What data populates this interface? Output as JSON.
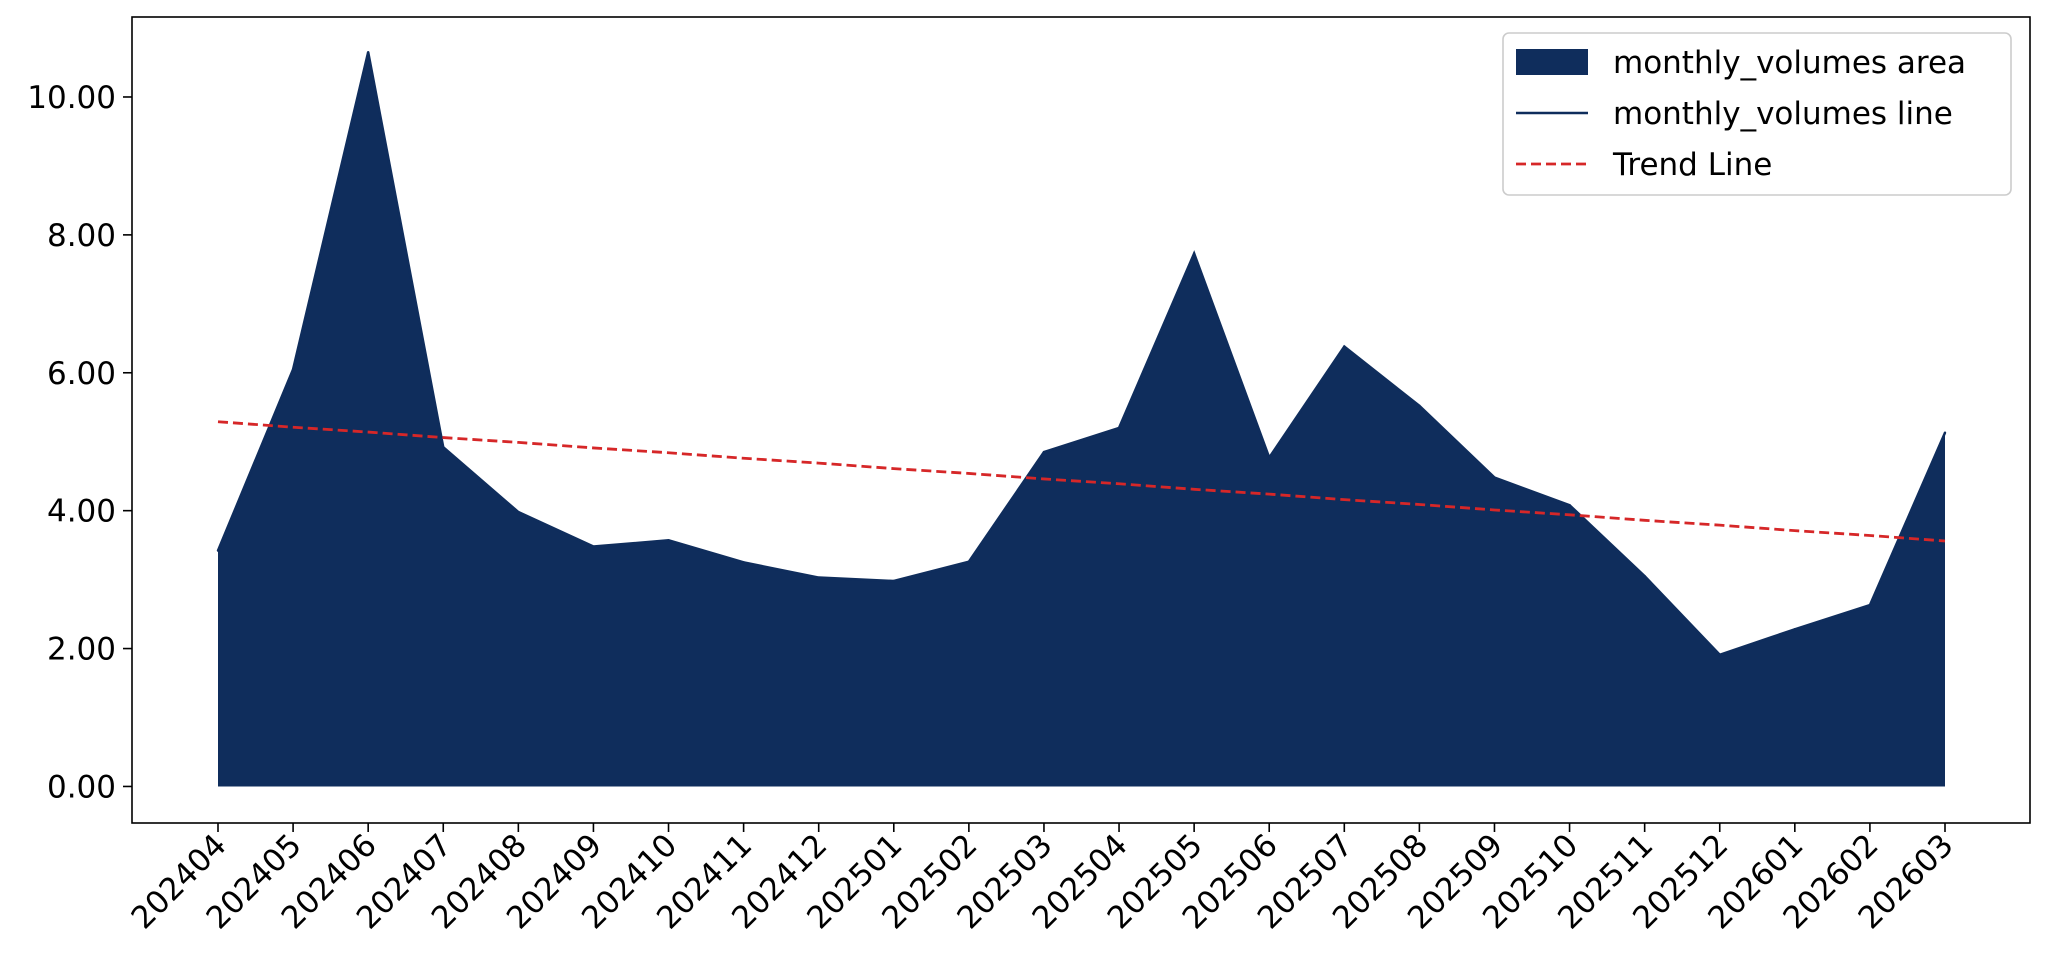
{
  "colors": {
    "area": "#0f2d5c",
    "line": "#0f2d5c",
    "trend": "#d62728",
    "axis": "#000000",
    "legend_border": "#cccccc"
  },
  "chart_data": {
    "type": "area",
    "categories": [
      "202404",
      "202405",
      "202406",
      "202407",
      "202408",
      "202409",
      "202410",
      "202411",
      "202412",
      "202501",
      "202502",
      "202503",
      "202504",
      "202505",
      "202506",
      "202507",
      "202508",
      "202509",
      "202510",
      "202511",
      "202512",
      "202601",
      "202602",
      "202603"
    ],
    "series": [
      {
        "name": "monthly_volumes area",
        "kind": "area",
        "values": [
          3.42,
          6.05,
          10.65,
          4.92,
          3.98,
          3.48,
          3.57,
          3.25,
          3.03,
          2.98,
          3.26,
          4.85,
          5.2,
          7.73,
          4.77,
          6.38,
          5.52,
          4.48,
          4.08,
          3.05,
          1.91,
          2.28,
          2.63,
          5.13
        ]
      },
      {
        "name": "monthly_volumes line",
        "kind": "line",
        "values": [
          3.42,
          6.05,
          10.65,
          4.92,
          3.98,
          3.48,
          3.57,
          3.25,
          3.03,
          2.98,
          3.26,
          4.85,
          5.2,
          7.73,
          4.77,
          6.38,
          5.52,
          4.48,
          4.08,
          3.05,
          1.91,
          2.28,
          2.63,
          5.13
        ]
      },
      {
        "name": "Trend Line",
        "kind": "trend",
        "values": [
          5.29,
          5.21,
          5.14,
          5.06,
          4.99,
          4.91,
          4.84,
          4.76,
          4.69,
          4.61,
          4.54,
          4.46,
          4.39,
          4.31,
          4.24,
          4.16,
          4.09,
          4.01,
          3.94,
          3.86,
          3.79,
          3.71,
          3.64,
          3.56
        ]
      }
    ],
    "yticks": [
      "0.00",
      "2.00",
      "4.00",
      "6.00",
      "8.00",
      "10.00"
    ],
    "ylim": [
      -0.53,
      11.16
    ],
    "legend_position": "upper right",
    "grid": false,
    "title": "",
    "xlabel": "",
    "ylabel": ""
  }
}
